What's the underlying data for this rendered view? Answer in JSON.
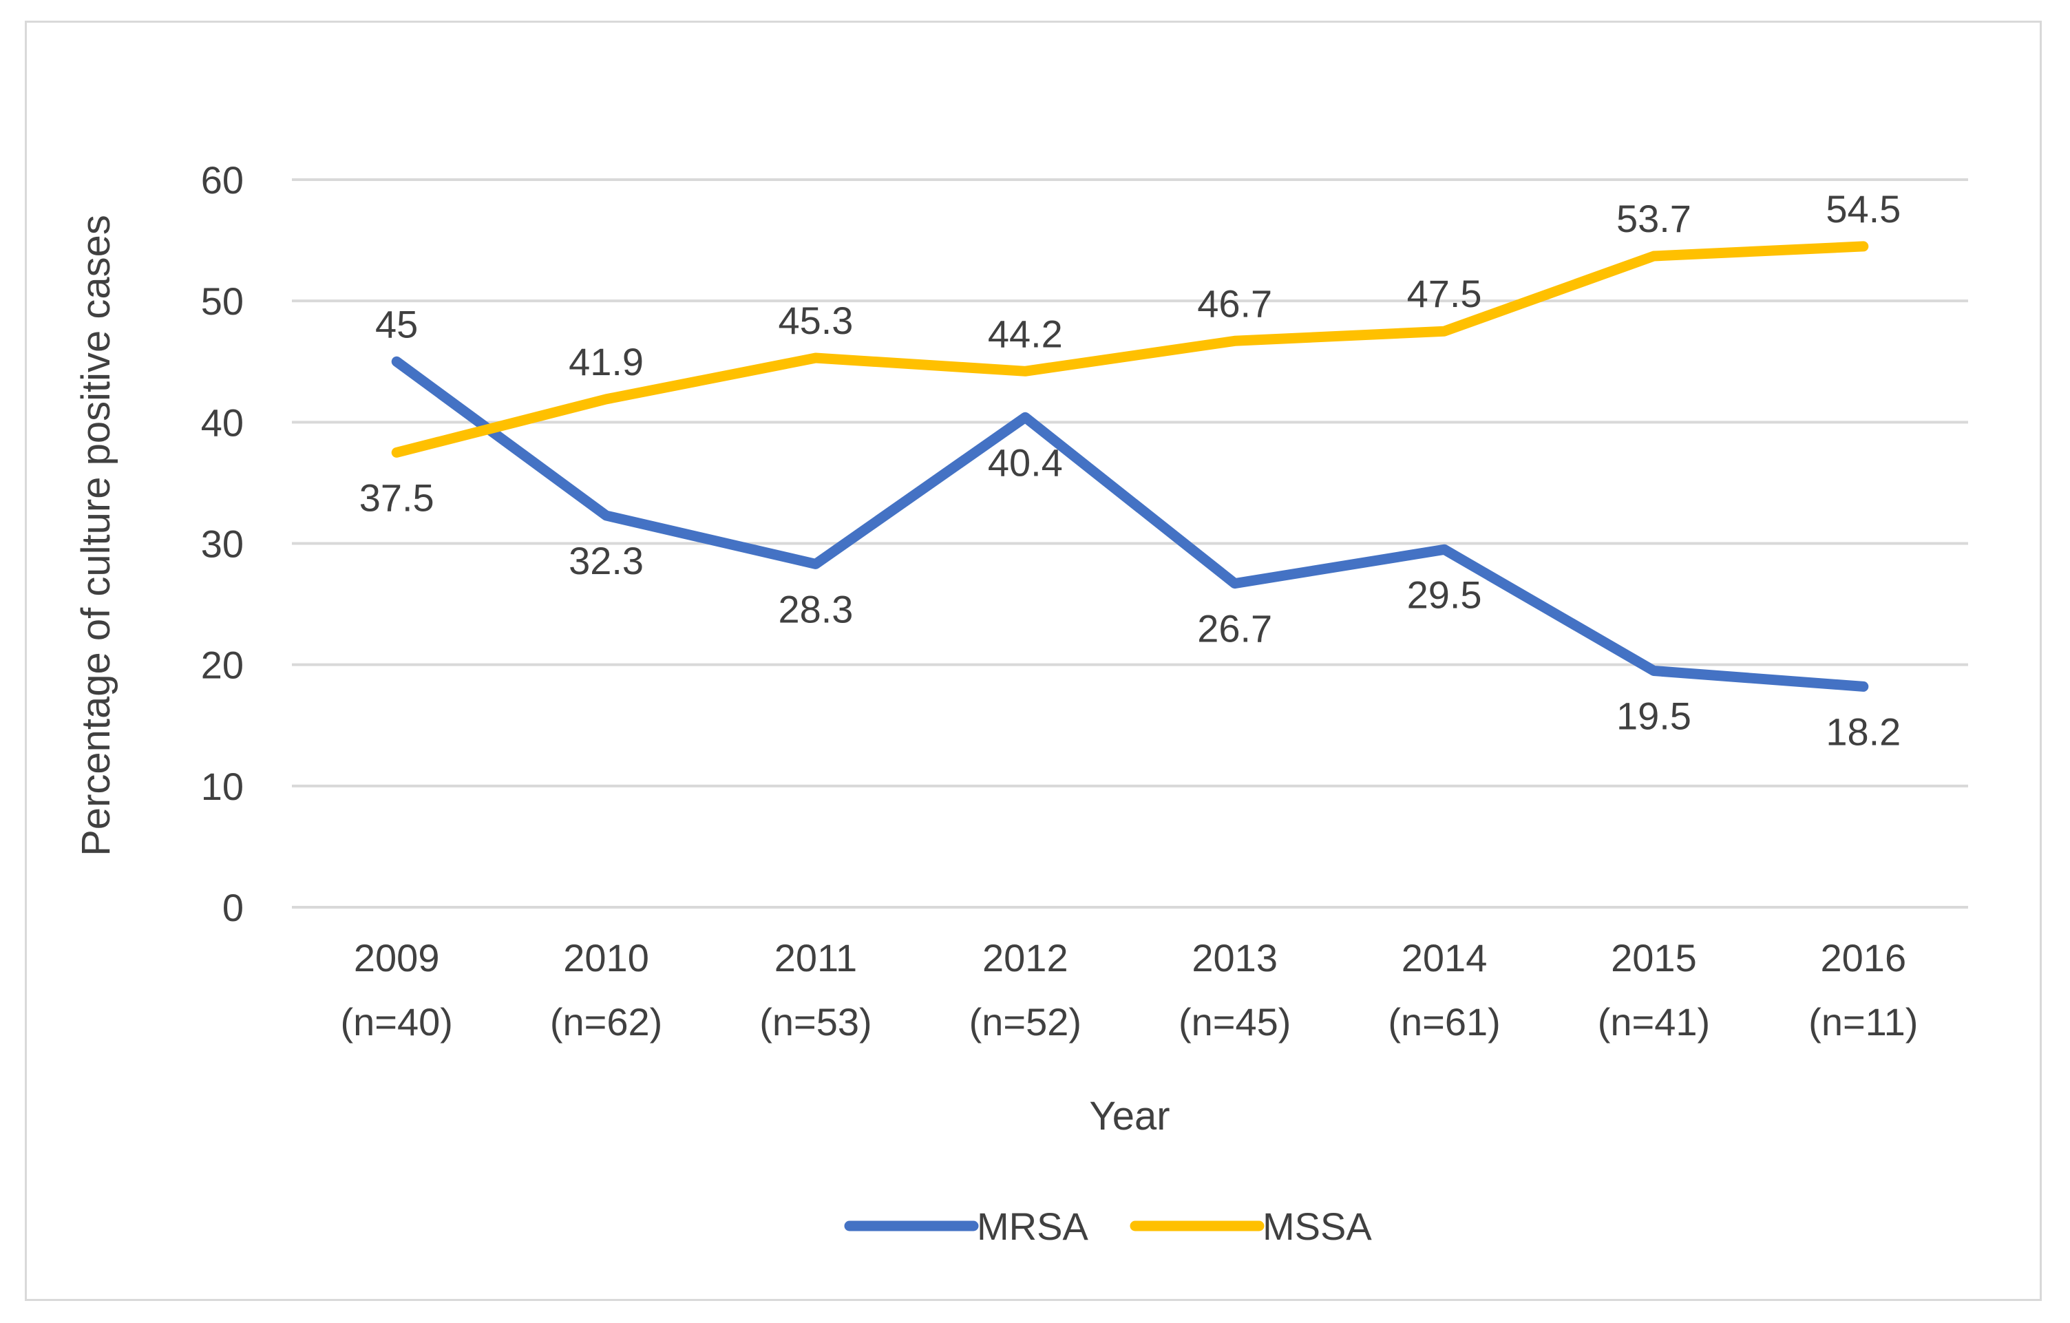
{
  "chart_data": {
    "type": "line",
    "title": "",
    "xlabel": "Year",
    "ylabel": "Percentage of culture positive cases",
    "ylim": [
      0,
      60
    ],
    "yticks": [
      0,
      10,
      20,
      30,
      40,
      50,
      60
    ],
    "grid": true,
    "legend_position": "bottom",
    "categories": [
      {
        "year": "2009",
        "n": "(n=40)"
      },
      {
        "year": "2010",
        "n": "(n=62)"
      },
      {
        "year": "2011",
        "n": "(n=53)"
      },
      {
        "year": "2012",
        "n": "(n=52)"
      },
      {
        "year": "2013",
        "n": "(n=45)"
      },
      {
        "year": "2014",
        "n": "(n=61)"
      },
      {
        "year": "2015",
        "n": "(n=41)"
      },
      {
        "year": "2016",
        "n": "(n=11)"
      }
    ],
    "series": [
      {
        "name": "MRSA",
        "color": "#4472c4",
        "values": [
          45,
          32.3,
          28.3,
          40.4,
          26.7,
          29.5,
          19.5,
          18.2
        ],
        "labels": [
          "45",
          "32.3",
          "28.3",
          "40.4",
          "26.7",
          "29.5",
          "19.5",
          "18.2"
        ],
        "label_positions": [
          "above",
          "below",
          "below",
          "below",
          "below",
          "below",
          "below",
          "below"
        ]
      },
      {
        "name": "MSSA",
        "color": "#ffc000",
        "values": [
          37.5,
          41.9,
          45.3,
          44.2,
          46.7,
          47.5,
          53.7,
          54.5
        ],
        "labels": [
          "37.5",
          "41.9",
          "45.3",
          "44.2",
          "46.7",
          "47.5",
          "53.7",
          "54.5"
        ],
        "label_positions": [
          "below",
          "above",
          "above",
          "above",
          "above",
          "above",
          "above",
          "above"
        ]
      }
    ]
  }
}
